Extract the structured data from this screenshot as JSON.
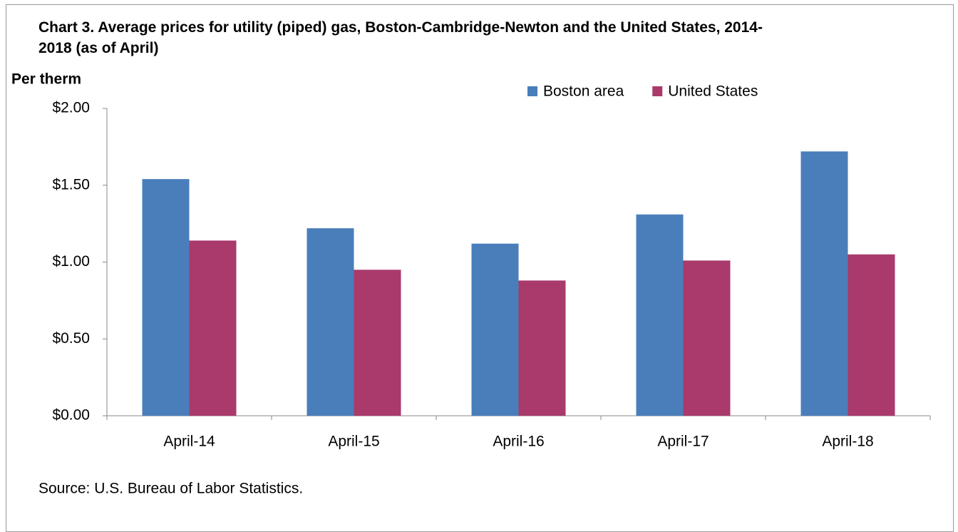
{
  "chart_data": {
    "type": "bar",
    "title": "Chart 3. Average prices for utility (piped) gas, Boston-Cambridge-Newton and the United States, 2014-2018 (as of April)",
    "y_label": "Per therm",
    "source": "Source: U.S. Bureau of Labor Statistics.",
    "categories": [
      "April-14",
      "April-15",
      "April-16",
      "April-17",
      "April-18"
    ],
    "series": [
      {
        "name": "Boston area",
        "color": "#4a7ebb",
        "values": [
          1.54,
          1.22,
          1.12,
          1.31,
          1.72
        ]
      },
      {
        "name": "United States",
        "color": "#a93a6b",
        "values": [
          1.14,
          0.95,
          0.88,
          1.01,
          1.05
        ]
      }
    ],
    "ylim": [
      0,
      2
    ],
    "yticks": [
      {
        "value": 0,
        "label": "$0.00"
      },
      {
        "value": 0.5,
        "label": "$0.50"
      },
      {
        "value": 1,
        "label": "$1.00"
      },
      {
        "value": 1.5,
        "label": "$1.50"
      },
      {
        "value": 2,
        "label": "$2.00"
      }
    ],
    "grid": false,
    "legend": "top-right"
  }
}
